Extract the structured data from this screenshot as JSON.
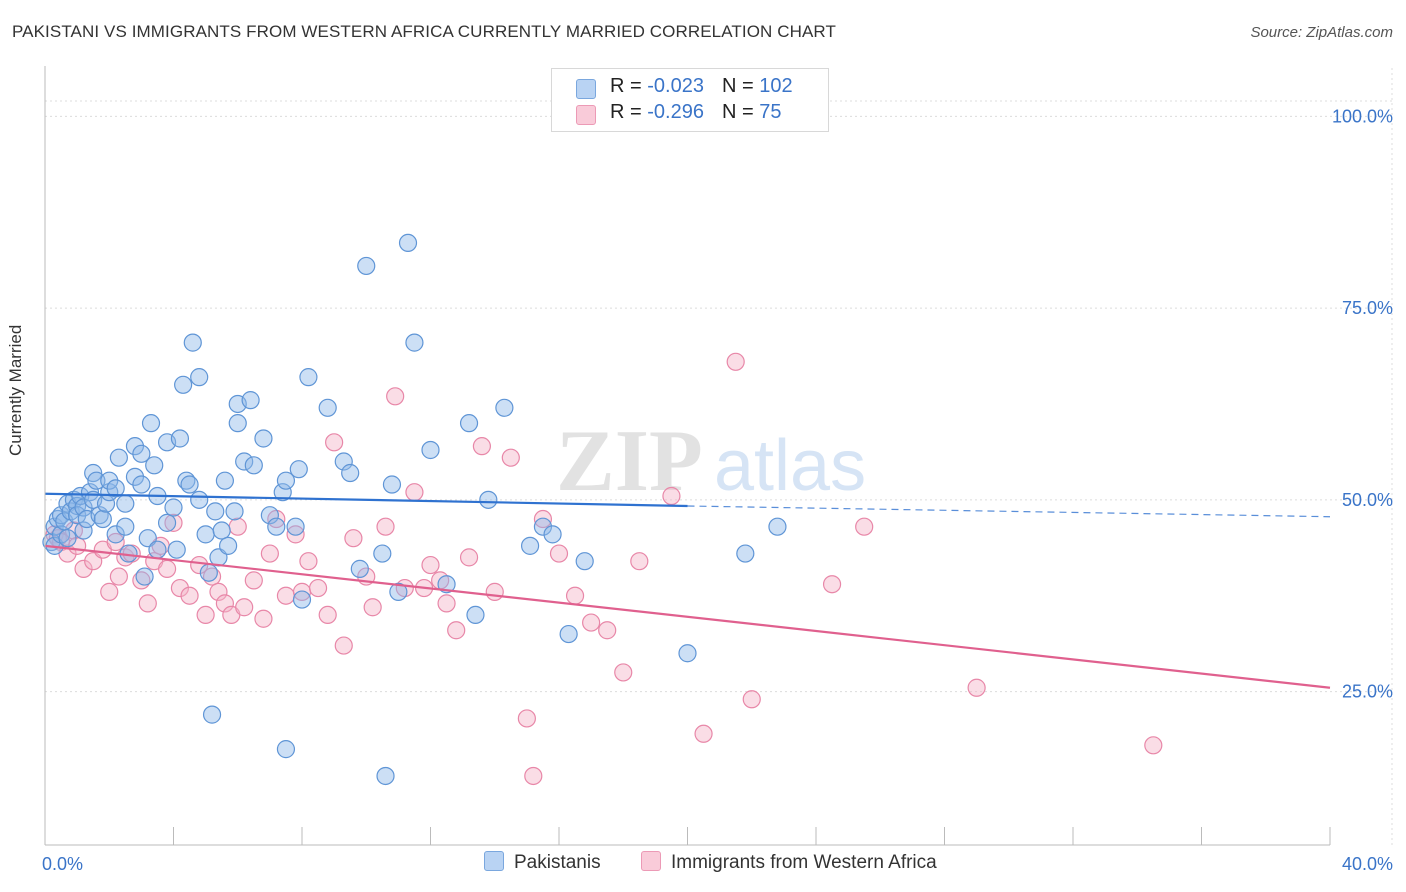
{
  "title": "PAKISTANI VS IMMIGRANTS FROM WESTERN AFRICA CURRENTLY MARRIED CORRELATION CHART",
  "source": "Source: ZipAtlas.com",
  "watermark": {
    "zip": "ZIP",
    "atlas": "atlas"
  },
  "legend": {
    "rows": [
      {
        "r_label": "R = ",
        "r_value": "-0.023",
        "n_label": "N = ",
        "n_value": "102"
      },
      {
        "r_label": "R = ",
        "r_value": "-0.296",
        "n_label": "N = ",
        "n_value": "75"
      }
    ]
  },
  "chart_data": {
    "type": "scatter",
    "title": "PAKISTANI VS IMMIGRANTS FROM WESTERN AFRICA CURRENTLY MARRIED CORRELATION CHART",
    "xlabel": "",
    "ylabel": "Currently Married",
    "xlim": [
      0,
      40
    ],
    "ylim": [
      5,
      105
    ],
    "x_tick_labels": [
      "0.0%",
      "40.0%"
    ],
    "y_ticks": [
      25,
      50,
      75,
      100
    ],
    "y_tick_labels": [
      "25.0%",
      "50.0%",
      "75.0%",
      "100.0%"
    ],
    "grid": true,
    "legend_position": "top-center",
    "series": [
      {
        "name": "Pakistanis",
        "color": "#8fb8e8",
        "stroke": "#5f95d6",
        "trend": {
          "x": [
            0,
            20
          ],
          "y": [
            50.8,
            49.2
          ],
          "dashed_to": [
            40,
            47.8
          ],
          "color": "#2f72d0"
        },
        "points": [
          [
            0.2,
            44.5
          ],
          [
            0.3,
            46.5
          ],
          [
            0.3,
            44.0
          ],
          [
            0.4,
            47.5
          ],
          [
            0.5,
            45.5
          ],
          [
            0.5,
            48.0
          ],
          [
            0.6,
            47.2
          ],
          [
            0.7,
            49.5
          ],
          [
            0.7,
            45.0
          ],
          [
            0.8,
            48.5
          ],
          [
            0.9,
            50.0
          ],
          [
            1.0,
            49.2
          ],
          [
            1.0,
            48.0
          ],
          [
            1.1,
            50.5
          ],
          [
            1.2,
            46.0
          ],
          [
            1.2,
            49.0
          ],
          [
            1.3,
            47.5
          ],
          [
            1.4,
            51.0
          ],
          [
            1.5,
            53.5
          ],
          [
            1.5,
            50.0
          ],
          [
            1.6,
            52.5
          ],
          [
            1.7,
            48.0
          ],
          [
            1.8,
            47.5
          ],
          [
            1.9,
            49.5
          ],
          [
            2.0,
            51.0
          ],
          [
            2.0,
            52.5
          ],
          [
            2.2,
            51.5
          ],
          [
            2.2,
            45.5
          ],
          [
            2.3,
            55.5
          ],
          [
            2.5,
            49.5
          ],
          [
            2.5,
            46.5
          ],
          [
            2.6,
            43.0
          ],
          [
            2.8,
            53.0
          ],
          [
            2.8,
            57.0
          ],
          [
            3.0,
            52.0
          ],
          [
            3.0,
            56.0
          ],
          [
            3.1,
            40.0
          ],
          [
            3.2,
            45.0
          ],
          [
            3.3,
            60.0
          ],
          [
            3.4,
            54.5
          ],
          [
            3.5,
            50.5
          ],
          [
            3.5,
            43.5
          ],
          [
            3.8,
            57.5
          ],
          [
            3.8,
            47.0
          ],
          [
            4.0,
            49.0
          ],
          [
            4.1,
            43.5
          ],
          [
            4.2,
            58.0
          ],
          [
            4.3,
            65.0
          ],
          [
            4.4,
            52.5
          ],
          [
            4.5,
            52.0
          ],
          [
            4.6,
            70.5
          ],
          [
            4.8,
            66.0
          ],
          [
            4.8,
            50.0
          ],
          [
            5.0,
            45.5
          ],
          [
            5.1,
            40.5
          ],
          [
            5.2,
            22.0
          ],
          [
            5.3,
            48.5
          ],
          [
            5.4,
            42.5
          ],
          [
            5.5,
            46.0
          ],
          [
            5.6,
            52.5
          ],
          [
            5.7,
            44.0
          ],
          [
            5.9,
            48.5
          ],
          [
            6.0,
            60.0
          ],
          [
            6.0,
            62.5
          ],
          [
            6.2,
            55.0
          ],
          [
            6.4,
            63.0
          ],
          [
            6.5,
            54.5
          ],
          [
            6.8,
            58.0
          ],
          [
            7.0,
            48.0
          ],
          [
            7.2,
            46.5
          ],
          [
            7.4,
            51.0
          ],
          [
            7.5,
            52.5
          ],
          [
            7.5,
            17.5
          ],
          [
            7.8,
            46.5
          ],
          [
            7.9,
            54.0
          ],
          [
            8.0,
            37.0
          ],
          [
            8.2,
            66.0
          ],
          [
            8.8,
            62.0
          ],
          [
            9.3,
            55.0
          ],
          [
            9.5,
            53.5
          ],
          [
            9.8,
            41.0
          ],
          [
            10.0,
            80.5
          ],
          [
            10.5,
            43.0
          ],
          [
            10.6,
            14.0
          ],
          [
            10.8,
            52.0
          ],
          [
            11.0,
            38.0
          ],
          [
            11.3,
            83.5
          ],
          [
            11.5,
            70.5
          ],
          [
            12.0,
            56.5
          ],
          [
            12.5,
            39.0
          ],
          [
            13.2,
            60.0
          ],
          [
            13.4,
            35.0
          ],
          [
            13.8,
            50.0
          ],
          [
            14.3,
            62.0
          ],
          [
            15.1,
            44.0
          ],
          [
            15.5,
            46.5
          ],
          [
            15.8,
            45.5
          ],
          [
            16.3,
            32.5
          ],
          [
            16.8,
            42.0
          ],
          [
            20.0,
            30.0
          ],
          [
            21.8,
            43.0
          ],
          [
            22.8,
            46.5
          ]
        ]
      },
      {
        "name": "Immigrants from Western Africa",
        "color": "#f5b4c8",
        "stroke": "#e887a8",
        "trend": {
          "x": [
            0,
            40
          ],
          "y": [
            44.0,
            25.5
          ],
          "color": "#e0608e"
        },
        "points": [
          [
            0.3,
            45.5
          ],
          [
            0.4,
            45.0
          ],
          [
            0.5,
            44.5
          ],
          [
            0.7,
            43.0
          ],
          [
            0.9,
            46.0
          ],
          [
            1.0,
            44.0
          ],
          [
            1.2,
            41.0
          ],
          [
            1.5,
            42.0
          ],
          [
            1.8,
            43.5
          ],
          [
            2.0,
            38.0
          ],
          [
            2.2,
            44.5
          ],
          [
            2.3,
            40.0
          ],
          [
            2.5,
            42.5
          ],
          [
            2.7,
            43.0
          ],
          [
            3.0,
            39.5
          ],
          [
            3.2,
            36.5
          ],
          [
            3.4,
            42.0
          ],
          [
            3.6,
            44.0
          ],
          [
            3.8,
            41.0
          ],
          [
            4.0,
            47.0
          ],
          [
            4.2,
            38.5
          ],
          [
            4.5,
            37.5
          ],
          [
            4.8,
            41.5
          ],
          [
            5.0,
            35.0
          ],
          [
            5.2,
            40.0
          ],
          [
            5.4,
            38.0
          ],
          [
            5.6,
            36.5
          ],
          [
            5.8,
            35.0
          ],
          [
            6.0,
            46.5
          ],
          [
            6.2,
            36.0
          ],
          [
            6.5,
            39.5
          ],
          [
            6.8,
            34.5
          ],
          [
            7.0,
            43.0
          ],
          [
            7.2,
            47.5
          ],
          [
            7.5,
            37.5
          ],
          [
            7.8,
            45.5
          ],
          [
            8.0,
            38.0
          ],
          [
            8.2,
            42.0
          ],
          [
            8.5,
            38.5
          ],
          [
            8.8,
            35.0
          ],
          [
            9.0,
            57.5
          ],
          [
            9.3,
            31.0
          ],
          [
            9.6,
            45.0
          ],
          [
            10.0,
            40.0
          ],
          [
            10.2,
            36.0
          ],
          [
            10.6,
            46.5
          ],
          [
            10.9,
            63.5
          ],
          [
            11.2,
            38.5
          ],
          [
            11.5,
            51.0
          ],
          [
            11.8,
            38.5
          ],
          [
            12.0,
            41.5
          ],
          [
            12.3,
            39.5
          ],
          [
            12.5,
            36.5
          ],
          [
            12.8,
            33.0
          ],
          [
            13.2,
            42.5
          ],
          [
            13.6,
            57.0
          ],
          [
            14.0,
            38.0
          ],
          [
            14.5,
            55.5
          ],
          [
            15.0,
            21.5
          ],
          [
            15.2,
            14.0
          ],
          [
            15.5,
            47.5
          ],
          [
            16.0,
            43.0
          ],
          [
            16.5,
            37.5
          ],
          [
            17.0,
            34.0
          ],
          [
            17.5,
            33.0
          ],
          [
            18.0,
            27.5
          ],
          [
            18.5,
            42.0
          ],
          [
            19.5,
            50.5
          ],
          [
            20.5,
            19.5
          ],
          [
            21.5,
            68.0
          ],
          [
            22.0,
            24.0
          ],
          [
            24.5,
            39.0
          ],
          [
            25.5,
            46.5
          ],
          [
            29.0,
            25.5
          ],
          [
            34.5,
            18.0
          ]
        ]
      }
    ]
  }
}
